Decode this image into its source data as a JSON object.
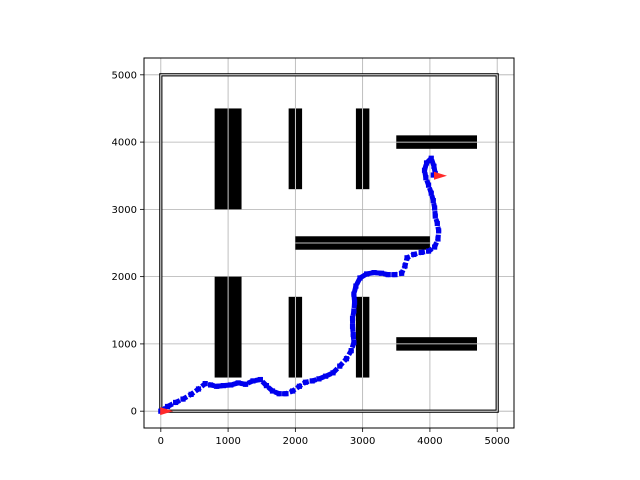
{
  "chart_data": {
    "type": "scatter",
    "title": "",
    "xlabel": "",
    "ylabel": "",
    "xlim": [
      -250,
      5250
    ],
    "ylim": [
      -250,
      5250
    ],
    "grid": true,
    "xticks": [
      0,
      1000,
      2000,
      3000,
      4000,
      5000
    ],
    "yticks": [
      0,
      1000,
      2000,
      3000,
      4000,
      5000
    ],
    "xtick_labels": [
      "0",
      "1000",
      "2000",
      "3000",
      "4000",
      "5000"
    ],
    "ytick_labels": [
      "0",
      "1000",
      "2000",
      "3000",
      "4000",
      "5000"
    ],
    "colors": {
      "obstacle": "#000000",
      "path": "#0000ee",
      "marker": "#ff2a2a",
      "grid": "#b0b0b0"
    },
    "boundary": [
      0,
      0,
      5000,
      5000
    ],
    "obstacles": [
      {
        "x0": 800,
        "y0": 3000,
        "x1": 1200,
        "y1": 4500
      },
      {
        "x0": 1900,
        "y0": 3300,
        "x1": 2100,
        "y1": 4500
      },
      {
        "x0": 2900,
        "y0": 3300,
        "x1": 3100,
        "y1": 4500
      },
      {
        "x0": 3500,
        "y0": 3900,
        "x1": 4700,
        "y1": 4100
      },
      {
        "x0": 2000,
        "y0": 2400,
        "x1": 4000,
        "y1": 2600
      },
      {
        "x0": 800,
        "y0": 500,
        "x1": 1200,
        "y1": 2000
      },
      {
        "x0": 1900,
        "y0": 500,
        "x1": 2100,
        "y1": 1700
      },
      {
        "x0": 2900,
        "y0": 500,
        "x1": 3100,
        "y1": 1700
      },
      {
        "x0": 3500,
        "y0": 900,
        "x1": 4700,
        "y1": 1100
      }
    ],
    "series": [
      {
        "x": [
          0,
          100,
          220,
          330,
          450,
          560,
          660,
          740,
          830,
          930,
          1040,
          1150,
          1260,
          1370,
          1480,
          1570,
          1660,
          1760,
          1860,
          1960,
          2060,
          2150,
          2250,
          2350,
          2450,
          2560,
          2660,
          2760,
          2830,
          2870,
          2860,
          2850,
          2850,
          2870,
          2880,
          2870,
          2900,
          2960,
          3060,
          3170,
          3280,
          3380,
          3480,
          3580,
          3630,
          3660,
          3760,
          3870,
          3980,
          4070,
          4120,
          4130,
          4110,
          4080,
          4070,
          4050,
          4020,
          3980,
          3940,
          3920,
          3950,
          4020,
          4060,
          4080,
          4050
        ],
        "y": [
          0,
          70,
          130,
          180,
          250,
          330,
          410,
          390,
          370,
          380,
          390,
          420,
          400,
          450,
          470,
          380,
          300,
          260,
          260,
          300,
          370,
          430,
          450,
          480,
          520,
          570,
          670,
          780,
          900,
          1020,
          1140,
          1260,
          1380,
          1490,
          1620,
          1740,
          1860,
          1980,
          2040,
          2060,
          2050,
          2030,
          2030,
          2050,
          2160,
          2280,
          2330,
          2360,
          2380,
          2440,
          2560,
          2680,
          2790,
          2900,
          3020,
          3130,
          3240,
          3360,
          3470,
          3580,
          3690,
          3760,
          3640,
          3530,
          3510
        ]
      }
    ],
    "markers": [
      {
        "x": 4150,
        "y": 3500
      },
      {
        "x": 80,
        "y": 0
      }
    ]
  }
}
